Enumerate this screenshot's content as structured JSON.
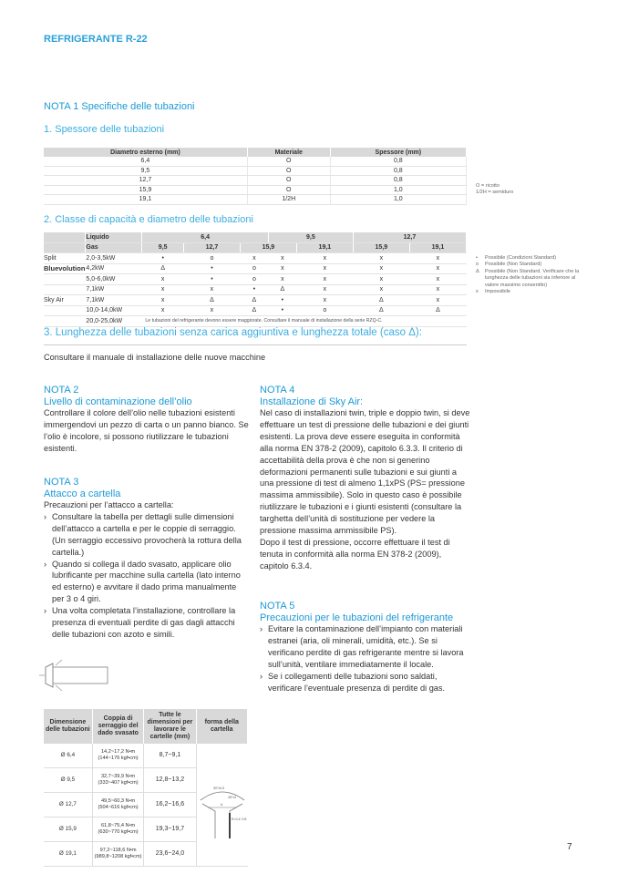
{
  "running_header": "REFRIGERANTE R-22",
  "nota1": {
    "title": "NOTA 1 Specifiche delle tubazioni",
    "section1": {
      "heading": "1. Spessore delle tubazioni",
      "columns": [
        "Diametro esterno (mm)",
        "Materiale",
        "Spessore (mm)"
      ],
      "rows": [
        [
          "6,4",
          "O",
          "0,8"
        ],
        [
          "9,5",
          "O",
          "0,8"
        ],
        [
          "12,7",
          "O",
          "0,8"
        ],
        [
          "15,9",
          "O",
          "1,0"
        ],
        [
          "19,1",
          "1/2H",
          "1,0"
        ]
      ],
      "legend": [
        "O = ricotto",
        "1/2H = semiduro"
      ]
    },
    "section2": {
      "heading": "2. Classe di capacità e diametro delle tubazioni",
      "liquid_label": "Liquido",
      "gas_label": "Gas",
      "liquid_values": [
        "6,4",
        "9,5",
        "12,7"
      ],
      "gas_values": [
        "9,5",
        "12,7",
        "15,9",
        "19,1",
        "15,9",
        "19,1"
      ],
      "groups": [
        {
          "name": "Split",
          "name_bold": "Bluevolution",
          "rows": [
            {
              "capacity": "2,0-3,5kW",
              "cells": [
                "•",
                "o",
                "x",
                "x",
                "x",
                "x",
                "x"
              ]
            },
            {
              "capacity": "4,2kW",
              "cells": [
                "Δ",
                "•",
                "o",
                "x",
                "x",
                "x",
                "x"
              ]
            },
            {
              "capacity": "5,0-6,0kW",
              "cells": [
                "x",
                "•",
                "o",
                "x",
                "x",
                "x",
                "x"
              ]
            },
            {
              "capacity": "7,1kW",
              "cells": [
                "x",
                "x",
                "•",
                "Δ",
                "x",
                "x",
                "x"
              ]
            }
          ]
        },
        {
          "name": "Sky Air",
          "rows": [
            {
              "capacity": "7,1kW",
              "cells": [
                "x",
                "Δ",
                "Δ",
                "•",
                "x",
                "Δ",
                "x"
              ]
            },
            {
              "capacity": "10,0-14,0kW",
              "cells": [
                "x",
                "x",
                "Δ",
                "•",
                "o",
                "Δ",
                "Δ"
              ]
            }
          ]
        }
      ],
      "last_row": {
        "capacity": "20,0-25,0kW",
        "note": "Le tubazioni del refrigerante devono essere maggiorate. Consultare il manuale di installazione della serie RZQ-C."
      },
      "legend": [
        {
          "symbol": "•",
          "text": "Possibile (Condizioni Standard)"
        },
        {
          "symbol": "o",
          "text": "Possibile (Non Standard)"
        },
        {
          "symbol": "Δ",
          "text": "Possibile (Non Standard. Verificare che la lunghezza delle tubazioni sia inferiore al valore massimo consentito)"
        },
        {
          "symbol": "x",
          "text": "Impossibile"
        }
      ]
    },
    "section3": {
      "heading": "3. Lunghezza delle tubazioni senza carica aggiuntiva e lunghezza totale (caso Δ):",
      "text": "Consultare il manuale di installazione delle nuove macchine"
    }
  },
  "nota2": {
    "label": "NOTA 2",
    "title": "Livello di contaminazione dell’olio",
    "text": "Controllare il colore dell’olio nelle tubazioni esistenti immergendovi un pezzo di carta o un panno bianco. Se l’olio è incolore, si possono riutilizzare le tubazioni esistenti."
  },
  "nota3": {
    "label": "NOTA 3",
    "title": "Attacco a cartella",
    "intro": "Precauzioni per l’attacco a cartella:",
    "bullets": [
      "Consultare la tabella per dettagli sulle dimensioni dell’attacco a cartella e per le coppie di serraggio. (Un serraggio eccessivo provocherà la rottura della cartella.)",
      "Quando si collega il dado svasato, applicare olio lubrificante per macchine sulla cartella (lato interno ed esterno) e avvitare il dado prima manualmente per 3 o 4 giri.",
      "Una volta completata l’installazione, controllare la presenza di eventuali perdite di gas dagli attacchi delle tubazioni con azoto e simili."
    ],
    "table": {
      "columns": [
        "Dimensione delle tubazioni",
        "Coppia di serraggio del dado svasato",
        "Tutte le dimensioni per lavorare le cartelle (mm)",
        "forma della cartella"
      ],
      "rows": [
        {
          "size": "Ø 6,4",
          "torque": "14,2~17,2 N•m",
          "torque2": "(144~176 kgf•cm)",
          "dim": "8,7~9,1"
        },
        {
          "size": "Ø 9,5",
          "torque": "32,7~39,9 N•m",
          "torque2": "(333~407 kgf•cm)",
          "dim": "12,8~13,2"
        },
        {
          "size": "Ø 12,7",
          "torque": "49,5~60,3 N•m",
          "torque2": "(504~616 kgf•cm)",
          "dim": "16,2~16,6"
        },
        {
          "size": "Ø 15,9",
          "torque": "61,8~75,4 N•m",
          "torque2": "(630~770 kgf•cm)",
          "dim": "19,3~19,7"
        },
        {
          "size": "Ø 19,1",
          "torque": "97,2~118,6 N•m",
          "torque2": "(989,8~1208 kgf•cm)",
          "dim": "23,6~24,0"
        }
      ],
      "diagram_labels": [
        "90°±0.5",
        "45°±2",
        "A",
        "R=0.4~0.8"
      ]
    }
  },
  "nota4": {
    "label": "NOTA 4",
    "title": "Installazione di Sky Air:",
    "paragraphs": [
      "Nel caso di installazioni twin, triple e doppio twin, si deve effettuare un test di pressione delle tubazioni e dei giunti esistenti. La prova deve essere eseguita in conformità alla norma EN 378-2 (2009), capitolo 6.3.3. Il criterio di accettabilità della prova è che non si generino deformazioni permanenti sulle tubazioni e sui giunti a una pressione di test di almeno 1,1xPS (PS= pressione massima ammissibile). Solo in questo caso è possibile riutilizzare le tubazioni e i giunti esistenti (consultare la targhetta dell’unità di sostituzione per vedere la pressione massima ammissibile PS).",
      "Dopo il test di pressione, occorre effettuare il test di tenuta in conformità alla norma EN 378-2 (2009), capitolo 6.3.4."
    ]
  },
  "nota5": {
    "label": "NOTA 5",
    "title": "Precauzioni per le tubazioni del refrigerante",
    "bullets": [
      "Evitare la contaminazione dell’impianto con materiali estranei (aria, oli minerali, umidità, etc.). Se si verificano perdite di gas refrigerante mentre si lavora sull’unità, ventilare immediatamente il locale.",
      "Se i collegamenti delle tubazioni sono saldati, verificare l’eventuale presenza di perdite di gas."
    ]
  },
  "page_number": "7",
  "colors": {
    "accent": "#1b9ad6",
    "table_header": "#d9d9d9"
  }
}
